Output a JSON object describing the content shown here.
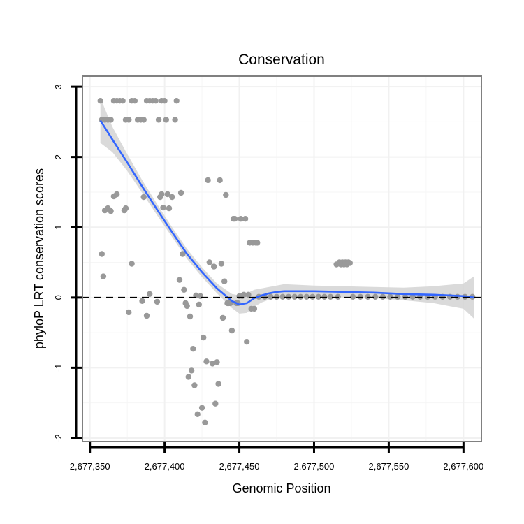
{
  "chart_data": {
    "type": "scatter",
    "title": "Conservation",
    "xlabel": "Genomic Position",
    "ylabel": "phyloP LRT conservation scores",
    "xlim": [
      2677345,
      2677612
    ],
    "ylim": [
      -2.05,
      3.15
    ],
    "x_ticks": [
      2677350,
      2677400,
      2677450,
      2677500,
      2677550,
      2677600
    ],
    "x_tick_labels": [
      "2,677,350",
      "2,677,400",
      "2,677,450",
      "2,677,500",
      "2,677,550",
      "2,677,600"
    ],
    "y_ticks": [
      -2,
      -1,
      0,
      1,
      2,
      3
    ],
    "y_tick_labels": [
      "-2",
      "-1",
      "0",
      "1",
      "2",
      "3"
    ],
    "reference_line": {
      "y": 0,
      "style": "dashed"
    },
    "colors": {
      "points": "#999999",
      "smooth_line": "#3366ff",
      "ribbon": "#d3d3d3",
      "reference_line": "#000000",
      "panel_border": "#808080"
    },
    "series": [
      {
        "name": "phyloP scores",
        "kind": "points",
        "points": [
          [
            2677357,
            2.8
          ],
          [
            2677358,
            2.53
          ],
          [
            2677360,
            2.53
          ],
          [
            2677362,
            2.53
          ],
          [
            2677364,
            2.53
          ],
          [
            2677366,
            2.8
          ],
          [
            2677368,
            2.8
          ],
          [
            2677370,
            2.8
          ],
          [
            2677372,
            2.8
          ],
          [
            2677374,
            2.53
          ],
          [
            2677376,
            2.53
          ],
          [
            2677378,
            2.8
          ],
          [
            2677380,
            2.8
          ],
          [
            2677382,
            2.53
          ],
          [
            2677384,
            2.53
          ],
          [
            2677386,
            2.53
          ],
          [
            2677388,
            2.8
          ],
          [
            2677390,
            2.8
          ],
          [
            2677392,
            2.8
          ],
          [
            2677394,
            2.8
          ],
          [
            2677396,
            2.53
          ],
          [
            2677398,
            2.8
          ],
          [
            2677400,
            2.8
          ],
          [
            2677401,
            2.53
          ],
          [
            2677407,
            2.53
          ],
          [
            2677408,
            2.8
          ],
          [
            2677358,
            0.62
          ],
          [
            2677359,
            0.3
          ],
          [
            2677360,
            1.24
          ],
          [
            2677362,
            1.27
          ],
          [
            2677364,
            1.23
          ],
          [
            2677366,
            1.44
          ],
          [
            2677368,
            1.47
          ],
          [
            2677373,
            1.24
          ],
          [
            2677374,
            1.27
          ],
          [
            2677376,
            -0.21
          ],
          [
            2677378,
            0.48
          ],
          [
            2677385,
            -0.05
          ],
          [
            2677386,
            1.43
          ],
          [
            2677388,
            -0.26
          ],
          [
            2677390,
            0.05
          ],
          [
            2677395,
            -0.06
          ],
          [
            2677397,
            1.43
          ],
          [
            2677398,
            1.47
          ],
          [
            2677399,
            1.28
          ],
          [
            2677402,
            1.47
          ],
          [
            2677403,
            1.27
          ],
          [
            2677405,
            1.43
          ],
          [
            2677410,
            0.25
          ],
          [
            2677411,
            1.49
          ],
          [
            2677412,
            0.62
          ],
          [
            2677413,
            0.11
          ],
          [
            2677414,
            -0.08
          ],
          [
            2677415,
            -0.12
          ],
          [
            2677416,
            -1.13
          ],
          [
            2677417,
            -0.27
          ],
          [
            2677418,
            -1.04
          ],
          [
            2677419,
            -0.73
          ],
          [
            2677420,
            -1.25
          ],
          [
            2677421,
            0.03
          ],
          [
            2677422,
            -1.66
          ],
          [
            2677423,
            -0.1
          ],
          [
            2677424,
            0.02
          ],
          [
            2677425,
            -1.57
          ],
          [
            2677426,
            -0.57
          ],
          [
            2677427,
            -1.78
          ],
          [
            2677428,
            -0.91
          ],
          [
            2677429,
            1.67
          ],
          [
            2677430,
            0.5
          ],
          [
            2677432,
            -0.94
          ],
          [
            2677433,
            0.44
          ],
          [
            2677434,
            -1.51
          ],
          [
            2677435,
            -0.92
          ],
          [
            2677436,
            -1.23
          ],
          [
            2677437,
            1.67
          ],
          [
            2677438,
            0.48
          ],
          [
            2677439,
            -0.29
          ],
          [
            2677440,
            0.23
          ],
          [
            2677441,
            1.46
          ],
          [
            2677442,
            -0.08
          ],
          [
            2677443,
            -0.08
          ],
          [
            2677444,
            -0.08
          ],
          [
            2677445,
            -0.47
          ],
          [
            2677446,
            1.12
          ],
          [
            2677447,
            1.12
          ],
          [
            2677448,
            -0.08
          ],
          [
            2677449,
            -0.08
          ],
          [
            2677450,
            0.02
          ],
          [
            2677451,
            1.12
          ],
          [
            2677452,
            0.02
          ],
          [
            2677453,
            0.04
          ],
          [
            2677454,
            1.12
          ],
          [
            2677455,
            -0.63
          ],
          [
            2677456,
            0.04
          ],
          [
            2677457,
            0.78
          ],
          [
            2677458,
            -0.16
          ],
          [
            2677459,
            0.78
          ],
          [
            2677460,
            -0.16
          ],
          [
            2677461,
            0.78
          ],
          [
            2677462,
            0.78
          ],
          [
            2677463,
            0.01
          ],
          [
            2677467,
            0.01
          ],
          [
            2677471,
            0.01
          ],
          [
            2677475,
            0.01
          ],
          [
            2677479,
            0.01
          ],
          [
            2677483,
            0.01
          ],
          [
            2677487,
            0.01
          ],
          [
            2677491,
            0.01
          ],
          [
            2677495,
            0.01
          ],
          [
            2677499,
            0.01
          ],
          [
            2677503,
            0.01
          ],
          [
            2677507,
            0.01
          ],
          [
            2677511,
            0.01
          ],
          [
            2677515,
            0.47
          ],
          [
            2677516,
            0.01
          ],
          [
            2677517,
            0.5
          ],
          [
            2677518,
            0.47
          ],
          [
            2677519,
            0.5
          ],
          [
            2677520,
            0.47
          ],
          [
            2677521,
            0.5
          ],
          [
            2677522,
            0.47
          ],
          [
            2677523,
            0.5
          ],
          [
            2677524,
            0.49
          ],
          [
            2677526,
            0.01
          ],
          [
            2677531,
            0.01
          ],
          [
            2677536,
            0.01
          ],
          [
            2677541,
            0.01
          ],
          [
            2677546,
            0.01
          ],
          [
            2677551,
            0.01
          ],
          [
            2677556,
            0.01
          ],
          [
            2677561,
            0.01
          ],
          [
            2677566,
            0.01
          ],
          [
            2677571,
            0.01
          ],
          [
            2677576,
            0.01
          ],
          [
            2677581,
            0.01
          ],
          [
            2677586,
            0.01
          ],
          [
            2677591,
            0.01
          ],
          [
            2677596,
            0.01
          ],
          [
            2677601,
            0.01
          ],
          [
            2677606,
            0.01
          ]
        ]
      },
      {
        "name": "loess smooth",
        "kind": "line",
        "x": [
          2677357,
          2677365,
          2677375,
          2677385,
          2677395,
          2677405,
          2677415,
          2677425,
          2677435,
          2677445,
          2677450,
          2677455,
          2677460,
          2677465,
          2677470,
          2677475,
          2677480,
          2677490,
          2677500,
          2677520,
          2677540,
          2677560,
          2677580,
          2677600,
          2677607
        ],
        "y": [
          2.52,
          2.25,
          1.92,
          1.58,
          1.25,
          0.93,
          0.62,
          0.36,
          0.13,
          -0.05,
          -0.1,
          -0.08,
          -0.01,
          0.03,
          0.06,
          0.08,
          0.09,
          0.09,
          0.09,
          0.08,
          0.07,
          0.05,
          0.04,
          0.02,
          0.0
        ]
      },
      {
        "name": "95% confidence band",
        "kind": "ribbon",
        "x": [
          2677357,
          2677365,
          2677375,
          2677385,
          2677395,
          2677405,
          2677415,
          2677425,
          2677435,
          2677445,
          2677450,
          2677455,
          2677460,
          2677465,
          2677470,
          2677475,
          2677480,
          2677490,
          2677500,
          2677520,
          2677540,
          2677560,
          2677580,
          2677600,
          2677607
        ],
        "ymin": [
          2.2,
          2.07,
          1.8,
          1.49,
          1.17,
          0.86,
          0.55,
          0.29,
          0.06,
          -0.15,
          -0.23,
          -0.22,
          -0.13,
          -0.07,
          -0.03,
          -0.01,
          -0.01,
          0.0,
          0.01,
          0.0,
          -0.01,
          -0.04,
          -0.08,
          -0.16,
          -0.3
        ],
        "ymax": [
          2.84,
          2.43,
          2.04,
          1.67,
          1.33,
          1.0,
          0.69,
          0.43,
          0.2,
          0.05,
          0.03,
          0.06,
          0.11,
          0.13,
          0.15,
          0.17,
          0.19,
          0.18,
          0.17,
          0.16,
          0.15,
          0.14,
          0.16,
          0.2,
          0.3
        ]
      }
    ]
  }
}
